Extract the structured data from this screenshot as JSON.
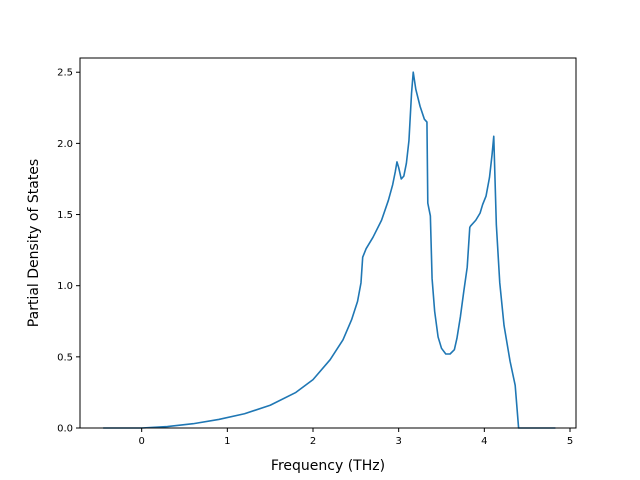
{
  "chart_data": {
    "type": "line",
    "title": "",
    "xlabel": "Frequency (THz)",
    "ylabel": "Partial Density of States",
    "xlim": [
      -0.72,
      5.07
    ],
    "ylim": [
      0.0,
      2.6
    ],
    "xticks": [
      0,
      1,
      2,
      3,
      4,
      5
    ],
    "xtick_labels": [
      "0",
      "1",
      "2",
      "3",
      "4",
      "5"
    ],
    "yticks": [
      0.0,
      0.5,
      1.0,
      1.5,
      2.0,
      2.5
    ],
    "ytick_labels": [
      "0.0",
      "0.5",
      "1.0",
      "1.5",
      "2.0",
      "2.5"
    ],
    "grid": false,
    "legend": "none",
    "series": [
      {
        "color": "#1f77b4",
        "x": [
          -0.45,
          0.0,
          0.3,
          0.6,
          0.9,
          1.2,
          1.5,
          1.8,
          2.0,
          2.2,
          2.35,
          2.45,
          2.52,
          2.56,
          2.58,
          2.62,
          2.7,
          2.8,
          2.88,
          2.93,
          2.96,
          2.98,
          3.0,
          3.03,
          3.06,
          3.09,
          3.12,
          3.15,
          3.17,
          3.2,
          3.25,
          3.3,
          3.33,
          3.34,
          3.37,
          3.39,
          3.42,
          3.46,
          3.5,
          3.55,
          3.6,
          3.65,
          3.68,
          3.72,
          3.76,
          3.8,
          3.83,
          3.84,
          3.9,
          3.95,
          3.98,
          4.02,
          4.06,
          4.09,
          4.11,
          4.14,
          4.18,
          4.23,
          4.3,
          4.36,
          4.4,
          4.6,
          4.83
        ],
        "y": [
          0.0,
          0.0,
          0.01,
          0.03,
          0.06,
          0.1,
          0.16,
          0.25,
          0.34,
          0.48,
          0.62,
          0.76,
          0.89,
          1.02,
          1.2,
          1.26,
          1.34,
          1.46,
          1.6,
          1.71,
          1.8,
          1.87,
          1.83,
          1.75,
          1.77,
          1.86,
          2.02,
          2.35,
          2.5,
          2.38,
          2.26,
          2.17,
          2.15,
          1.58,
          1.49,
          1.05,
          0.82,
          0.64,
          0.56,
          0.52,
          0.52,
          0.55,
          0.63,
          0.78,
          0.96,
          1.13,
          1.41,
          1.42,
          1.46,
          1.51,
          1.57,
          1.63,
          1.76,
          1.92,
          2.05,
          1.43,
          1.02,
          0.72,
          0.47,
          0.3,
          0.0,
          0.0,
          0.0
        ]
      }
    ]
  }
}
